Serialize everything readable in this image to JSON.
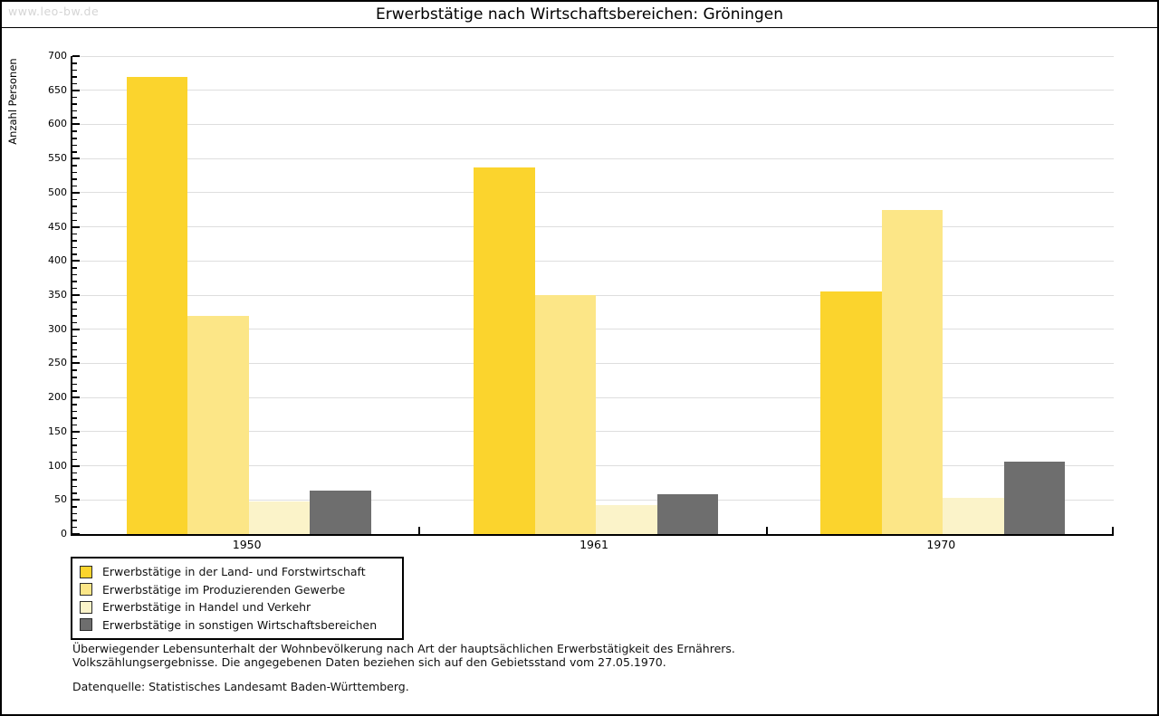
{
  "watermark": "www.leo-bw.de",
  "header": {
    "title": "Erwerbstätige nach Wirtschaftsbereichen: Gröningen"
  },
  "chart_data": {
    "type": "bar",
    "title": "Erwerbstätige nach Wirtschaftsbereichen: Gröningen",
    "categories": [
      "1950",
      "1961",
      "1970"
    ],
    "series": [
      {
        "name": "Erwerbstätige in der Land- und Forstwirtschaft",
        "color": "#fbd42d",
        "values": [
          670,
          537,
          355
        ]
      },
      {
        "name": "Erwerbstätige im Produzierenden Gewerbe",
        "color": "#fce687",
        "values": [
          320,
          350,
          474
        ]
      },
      {
        "name": "Erwerbstätige in Handel und Verkehr",
        "color": "#fbf3c9",
        "values": [
          48,
          43,
          53
        ]
      },
      {
        "name": "Erwerbstätige in sonstigen Wirtschaftsbereichen",
        "color": "#6e6e6e",
        "values": [
          63,
          58,
          106
        ]
      }
    ],
    "xlabel": "",
    "ylabel": "Anzahl Personen",
    "ylim": [
      0,
      700
    ],
    "ytick_step": 50,
    "yminor_step": 10,
    "grid": true,
    "legend_position": "bottom-left"
  },
  "footer": {
    "note_line1": "Überwiegender Lebensunterhalt der Wohnbevölkerung nach Art der hauptsächlichen Erwerbstätigkeit des Ernährers.",
    "note_line2": "Volkszählungsergebnisse. Die angegebenen Daten beziehen sich auf den Gebietsstand vom 27.05.1970.",
    "source": "Datenquelle: Statistisches Landesamt Baden-Württemberg."
  },
  "colors": {
    "grid": "#dedede",
    "axis": "#000000",
    "watermark": "#d5d5d5"
  }
}
